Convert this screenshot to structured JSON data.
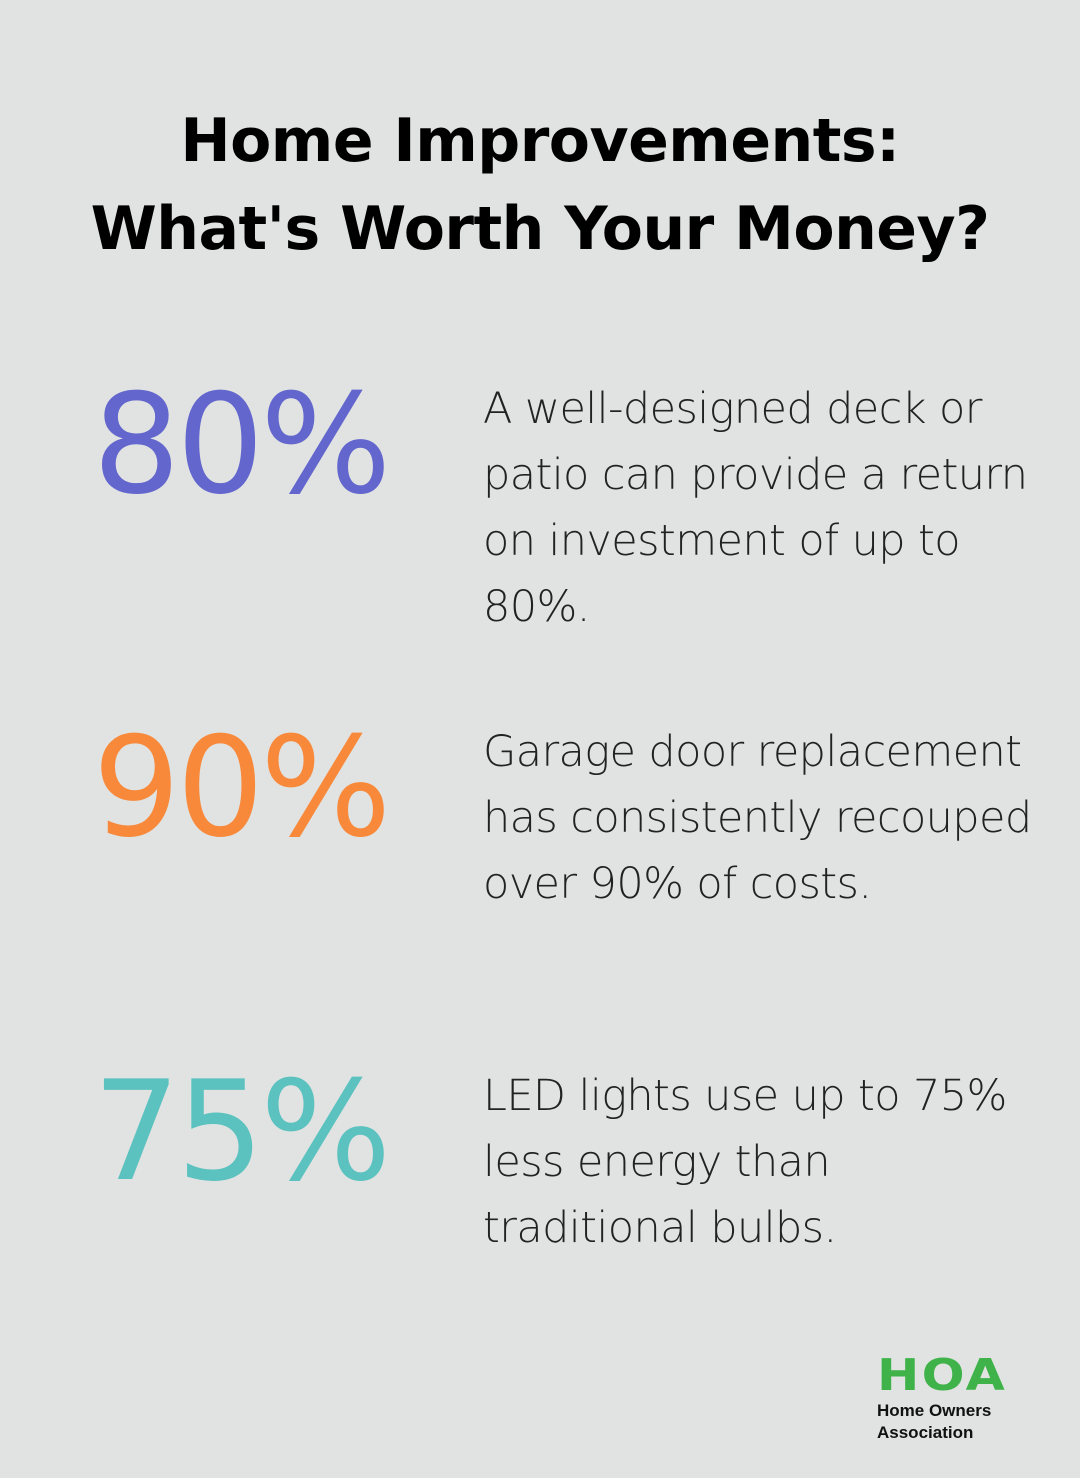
{
  "title": {
    "line1": "Home Improvements:",
    "line2": "What's Worth Your Money?"
  },
  "stats": [
    {
      "value": "80%",
      "color": "#6366cc",
      "description": "A well-designed deck or patio can provide a return on investment of up to 80%."
    },
    {
      "value": "90%",
      "color": "#f8893a",
      "description": "Garage door replacement has consistently recouped over 90% of costs."
    },
    {
      "value": "75%",
      "color": "#5bc2c0",
      "description": "LED lights use up to 75% less energy than traditional bulbs."
    }
  ],
  "logo": {
    "mark": "HOA",
    "line1": "Home Owners",
    "line2": "Association",
    "color": "#3fb24a"
  }
}
